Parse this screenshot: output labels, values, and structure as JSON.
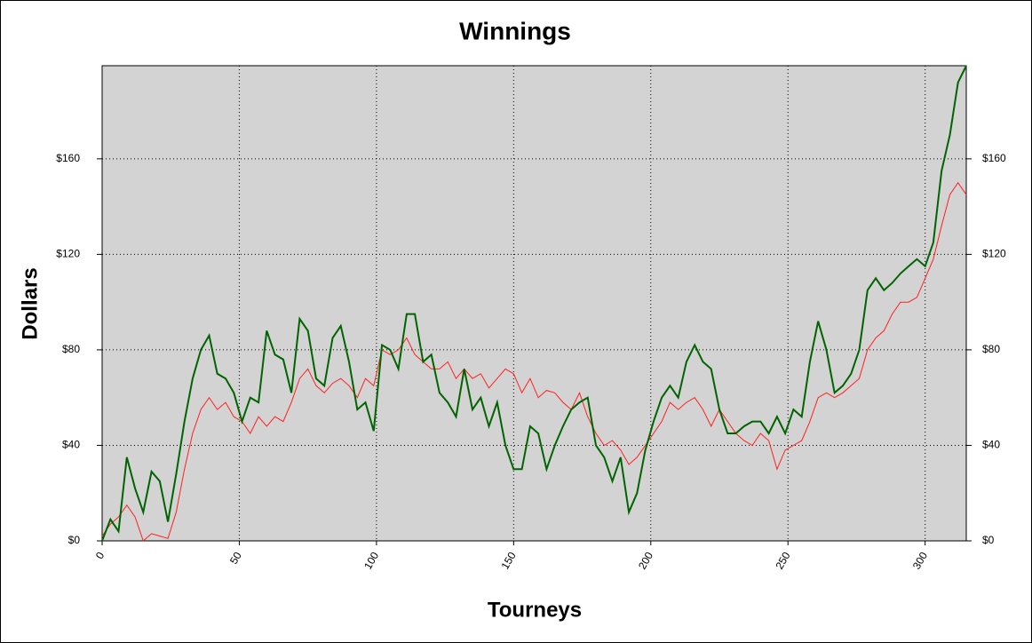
{
  "chart_data": {
    "type": "line",
    "title": "Winnings",
    "x_label": "Tourneys",
    "y_label": "Dollars",
    "x": [
      0,
      3,
      6,
      9,
      12,
      15,
      18,
      21,
      24,
      27,
      30,
      33,
      36,
      39,
      42,
      45,
      48,
      51,
      54,
      57,
      60,
      63,
      66,
      69,
      72,
      75,
      78,
      81,
      84,
      87,
      90,
      93,
      96,
      99,
      102,
      105,
      108,
      111,
      114,
      117,
      120,
      123,
      126,
      129,
      132,
      135,
      138,
      141,
      144,
      147,
      150,
      153,
      156,
      159,
      162,
      165,
      168,
      171,
      174,
      177,
      180,
      183,
      186,
      189,
      192,
      195,
      198,
      201,
      204,
      207,
      210,
      213,
      216,
      219,
      222,
      225,
      228,
      231,
      234,
      237,
      240,
      243,
      246,
      249,
      252,
      255,
      258,
      261,
      264,
      267,
      270,
      273,
      276,
      279,
      282,
      285,
      288,
      291,
      294,
      297,
      300,
      303,
      306,
      309,
      312,
      315
    ],
    "series": [
      {
        "color": "#006400",
        "values": [
          0,
          9,
          4,
          35,
          22,
          12,
          29,
          25,
          8,
          28,
          50,
          68,
          80,
          86,
          70,
          68,
          62,
          50,
          60,
          58,
          88,
          78,
          76,
          62,
          93,
          88,
          68,
          65,
          85,
          90,
          75,
          55,
          58,
          46,
          82,
          80,
          72,
          95,
          95,
          75,
          78,
          62,
          58,
          52,
          72,
          55,
          60,
          48,
          58,
          40,
          30,
          30,
          48,
          45,
          30,
          40,
          48,
          55,
          58,
          60,
          40,
          35,
          25,
          35,
          12,
          20,
          38,
          50,
          60,
          65,
          60,
          75,
          82,
          75,
          72,
          55,
          45,
          45,
          48,
          50,
          50,
          45,
          52,
          45,
          55,
          52,
          75,
          92,
          80,
          62,
          65,
          70,
          80,
          105,
          110,
          105,
          108,
          112,
          115,
          118,
          115,
          125,
          155,
          170,
          192,
          199
        ]
      },
      {
        "color": "#ff2020",
        "values": [
          2,
          7,
          10,
          15,
          10,
          0,
          3,
          2,
          1,
          12,
          30,
          45,
          55,
          60,
          55,
          58,
          52,
          50,
          45,
          52,
          48,
          52,
          50,
          58,
          68,
          72,
          65,
          62,
          66,
          68,
          65,
          60,
          68,
          65,
          80,
          78,
          80,
          85,
          78,
          75,
          72,
          72,
          75,
          68,
          72,
          68,
          70,
          64,
          68,
          72,
          70,
          62,
          68,
          60,
          63,
          62,
          58,
          55,
          62,
          52,
          45,
          40,
          42,
          38,
          32,
          35,
          40,
          45,
          50,
          58,
          55,
          58,
          60,
          55,
          48,
          55,
          50,
          45,
          42,
          40,
          45,
          42,
          30,
          38,
          40,
          42,
          50,
          60,
          62,
          60,
          62,
          65,
          68,
          80,
          85,
          88,
          95,
          100,
          100,
          102,
          110,
          118,
          132,
          145,
          150,
          145
        ]
      }
    ],
    "xlim": [
      0,
      315
    ],
    "xticks": [
      0,
      50,
      100,
      150,
      200,
      250,
      300
    ],
    "ylim": [
      0,
      199
    ],
    "yticks": [
      {
        "value": 0,
        "label": "$0"
      },
      {
        "value": 40,
        "label": "$40"
      },
      {
        "value": 80,
        "label": "$80"
      },
      {
        "value": 120,
        "label": "$120"
      },
      {
        "value": 160,
        "label": "$160"
      }
    ],
    "grid": true,
    "plot_background": "#d3d3d3"
  }
}
